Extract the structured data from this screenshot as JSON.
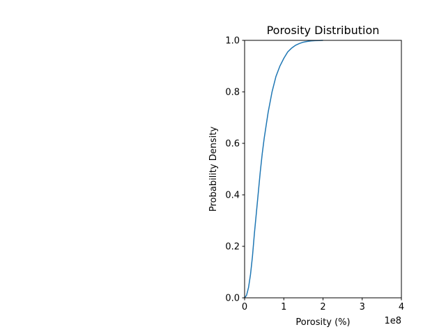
{
  "chart_data": {
    "type": "line",
    "title": "Porosity Distribution",
    "xlabel": "Porosity (%)",
    "ylabel": "Probability Density",
    "x_offset_label": "1e8",
    "xlim": [
      0,
      4
    ],
    "ylim": [
      0.0,
      1.0
    ],
    "xticks": [
      0,
      1,
      2,
      3,
      4
    ],
    "xtick_labels": [
      "0",
      "1",
      "2",
      "3",
      "4"
    ],
    "yticks": [
      0.0,
      0.2,
      0.4,
      0.6,
      0.8,
      1.0
    ],
    "ytick_labels": [
      "0.0",
      "0.2",
      "0.4",
      "0.6",
      "0.8",
      "1.0"
    ],
    "grid": false,
    "line_color": "#1f77b4",
    "series": [
      {
        "x": [
          0,
          0.05,
          0.1,
          0.15,
          0.2,
          0.25,
          0.3,
          0.35,
          0.4,
          0.45,
          0.5,
          0.6,
          0.7,
          0.8,
          0.9,
          1.0,
          1.1,
          1.2,
          1.3,
          1.4,
          1.5,
          1.6,
          1.7,
          1.8,
          1.9,
          2.0
        ],
        "y": [
          0.0,
          0.01,
          0.04,
          0.09,
          0.16,
          0.25,
          0.33,
          0.41,
          0.49,
          0.56,
          0.62,
          0.72,
          0.8,
          0.86,
          0.9,
          0.93,
          0.955,
          0.97,
          0.981,
          0.988,
          0.993,
          0.996,
          0.998,
          0.999,
          0.9995,
          1.0
        ]
      }
    ]
  }
}
